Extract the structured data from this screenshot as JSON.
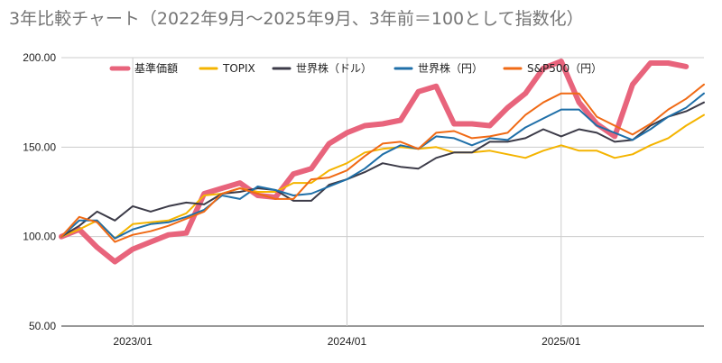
{
  "chart_data": {
    "type": "line",
    "title": "3年比較チャート（2022年9月〜2025年9月、3年前＝100として指数化）",
    "ylim": [
      50,
      200
    ],
    "y_ticks": [
      "200.00",
      "150.00",
      "100.00",
      "50.00"
    ],
    "x_ticks": [
      "2023/01",
      "2024/01",
      "2025/01"
    ],
    "grid": true,
    "legend_position": "top",
    "x": [
      "2022/09",
      "2022/10",
      "2022/11",
      "2022/12",
      "2023/01",
      "2023/02",
      "2023/03",
      "2023/04",
      "2023/05",
      "2023/06",
      "2023/07",
      "2023/08",
      "2023/09",
      "2023/10",
      "2023/11",
      "2023/12",
      "2024/01",
      "2024/02",
      "2024/03",
      "2024/04",
      "2024/05",
      "2024/06",
      "2024/07",
      "2024/08",
      "2024/09",
      "2024/10",
      "2024/11",
      "2024/12",
      "2025/01",
      "2025/02",
      "2025/03",
      "2025/04",
      "2025/05",
      "2025/06",
      "2025/07",
      "2025/08",
      "2025/09"
    ],
    "series": [
      {
        "name": "基準価額",
        "color": "#e8647c",
        "values": [
          100,
          104,
          94,
          86,
          93,
          97,
          101,
          102,
          124,
          127,
          130,
          123,
          122,
          135,
          138,
          152,
          158,
          162,
          163,
          165,
          181,
          184,
          163,
          163,
          162,
          172,
          180,
          194,
          198,
          175,
          163,
          156,
          185,
          197,
          197,
          195,
          null
        ]
      },
      {
        "name": "TOPIX",
        "color": "#f4b400",
        "values": [
          100,
          104,
          109,
          99,
          107,
          108,
          109,
          113,
          123,
          124,
          127,
          125,
          125,
          130,
          130,
          137,
          141,
          147,
          149,
          150,
          149,
          150,
          147,
          147,
          148,
          146,
          144,
          148,
          151,
          148,
          148,
          144,
          146,
          151,
          155,
          162,
          168
        ]
      },
      {
        "name": "世界株（ドル）",
        "color": "#3c3b48",
        "values": [
          100,
          106,
          114,
          109,
          117,
          114,
          117,
          119,
          118,
          124,
          125,
          127,
          126,
          120,
          120,
          129,
          132,
          136,
          141,
          139,
          138,
          144,
          147,
          147,
          153,
          153,
          155,
          160,
          156,
          160,
          158,
          153,
          154,
          162,
          167,
          170,
          175
        ]
      },
      {
        "name": "世界株（円）",
        "color": "#1f6fa8",
        "values": [
          100,
          109,
          109,
          99,
          104,
          107,
          108,
          111,
          115,
          123,
          121,
          128,
          126,
          123,
          124,
          128,
          132,
          138,
          146,
          151,
          149,
          156,
          155,
          151,
          155,
          154,
          161,
          166,
          171,
          171,
          162,
          158,
          154,
          160,
          167,
          172,
          180
        ]
      },
      {
        "name": "S&P500（円）",
        "color": "#f06a15",
        "values": [
          100,
          111,
          108,
          97,
          101,
          103,
          106,
          110,
          114,
          124,
          127,
          124,
          121,
          121,
          132,
          133,
          137,
          145,
          152,
          153,
          149,
          158,
          159,
          155,
          156,
          158,
          168,
          175,
          180,
          180,
          167,
          162,
          157,
          163,
          171,
          177,
          185
        ]
      }
    ]
  }
}
